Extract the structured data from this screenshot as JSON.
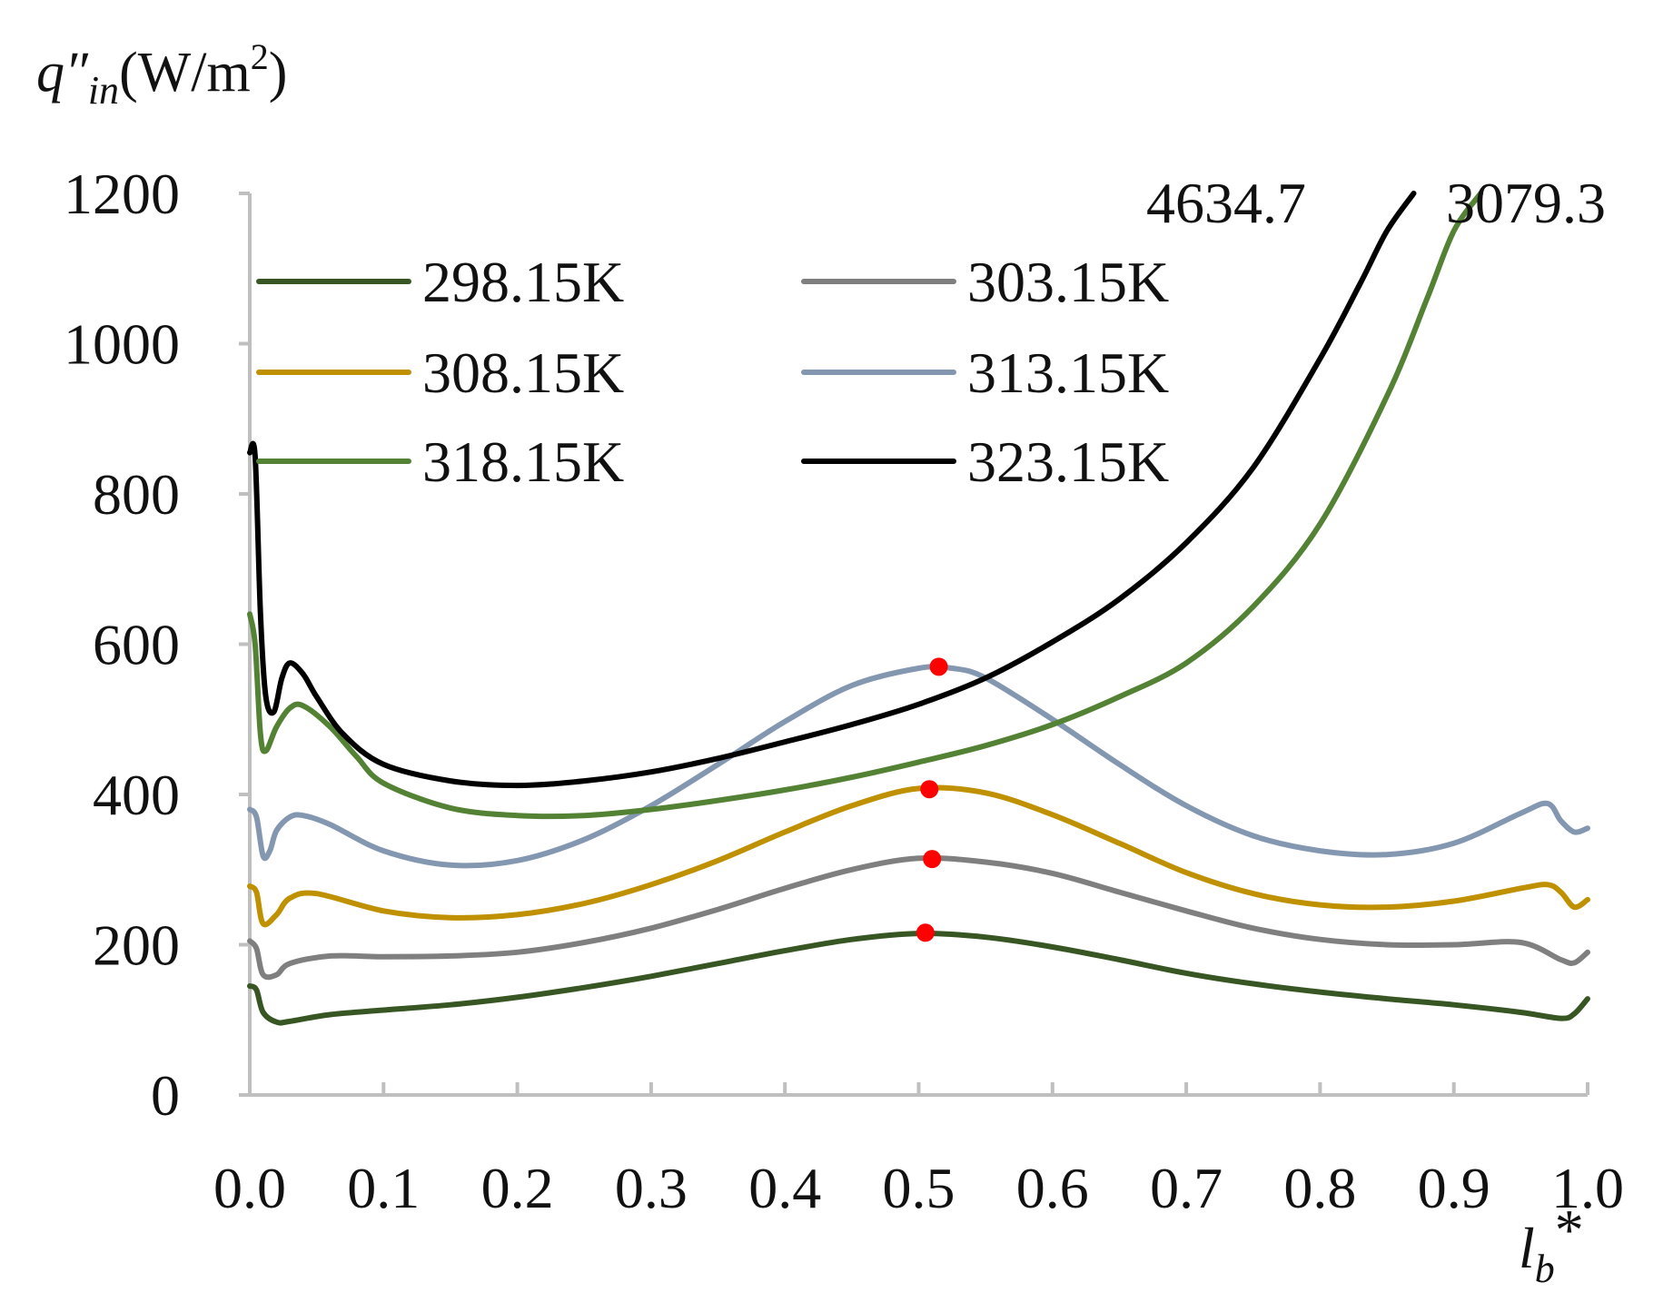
{
  "chart_data": {
    "type": "line",
    "ylabel": {
      "q": "q″",
      "sub": "in",
      "unit_pre": "(W/m",
      "unit_sup": "2",
      "unit_post": ")"
    },
    "xlabel": {
      "l": "l",
      "sub": "b",
      "star": "*"
    },
    "xlim": [
      0,
      1
    ],
    "ylim": [
      0,
      1200
    ],
    "xticks": [
      "0.0",
      "0.1",
      "0.2",
      "0.3",
      "0.4",
      "0.5",
      "0.6",
      "0.7",
      "0.8",
      "0.9",
      "1.0"
    ],
    "yticks": [
      "0",
      "200",
      "400",
      "600",
      "800",
      "1000",
      "1200"
    ],
    "annotations": [
      {
        "text": "4634.7",
        "series": "323.15K"
      },
      {
        "text": "3079.3",
        "series": "318.15K"
      }
    ],
    "legend_position": "top-left",
    "series": [
      {
        "name": "298.15K",
        "color": "#375623",
        "x": [
          0,
          0.005,
          0.01,
          0.02,
          0.03,
          0.06,
          0.1,
          0.15,
          0.2,
          0.25,
          0.3,
          0.35,
          0.4,
          0.45,
          0.5,
          0.55,
          0.6,
          0.65,
          0.7,
          0.75,
          0.8,
          0.85,
          0.9,
          0.95,
          0.98,
          0.99,
          1.0
        ],
        "values": [
          145,
          140,
          110,
          97,
          98,
          107,
          113,
          120,
          130,
          143,
          158,
          175,
          192,
          207,
          215,
          210,
          197,
          180,
          162,
          148,
          137,
          128,
          120,
          110,
          102,
          108,
          128
        ]
      },
      {
        "name": "303.15K",
        "color": "#7f7f7f",
        "x": [
          0,
          0.005,
          0.01,
          0.02,
          0.03,
          0.06,
          0.1,
          0.15,
          0.2,
          0.25,
          0.3,
          0.35,
          0.4,
          0.45,
          0.5,
          0.55,
          0.6,
          0.65,
          0.7,
          0.75,
          0.8,
          0.85,
          0.9,
          0.95,
          0.98,
          0.99,
          1.0
        ],
        "values": [
          205,
          195,
          160,
          160,
          175,
          185,
          184,
          185,
          190,
          203,
          222,
          247,
          275,
          300,
          315,
          310,
          295,
          270,
          245,
          222,
          207,
          200,
          200,
          203,
          180,
          176,
          190
        ]
      },
      {
        "name": "308.15K",
        "color": "#bf9000",
        "x": [
          0,
          0.005,
          0.01,
          0.02,
          0.03,
          0.05,
          0.1,
          0.15,
          0.2,
          0.25,
          0.3,
          0.35,
          0.4,
          0.45,
          0.5,
          0.55,
          0.6,
          0.65,
          0.7,
          0.75,
          0.8,
          0.85,
          0.9,
          0.95,
          0.97,
          0.98,
          0.99,
          1.0
        ],
        "values": [
          278,
          270,
          228,
          240,
          262,
          268,
          245,
          236,
          240,
          255,
          280,
          312,
          350,
          385,
          408,
          402,
          373,
          335,
          296,
          268,
          253,
          250,
          258,
          275,
          280,
          270,
          250,
          260
        ]
      },
      {
        "name": "313.15K",
        "color": "#8497b0",
        "x": [
          0,
          0.005,
          0.01,
          0.015,
          0.02,
          0.03,
          0.04,
          0.06,
          0.1,
          0.15,
          0.2,
          0.25,
          0.3,
          0.35,
          0.4,
          0.45,
          0.5,
          0.525,
          0.55,
          0.6,
          0.65,
          0.7,
          0.75,
          0.8,
          0.85,
          0.9,
          0.95,
          0.97,
          0.98,
          0.99,
          1.0
        ],
        "values": [
          380,
          370,
          318,
          325,
          352,
          370,
          372,
          360,
          325,
          306,
          312,
          340,
          385,
          440,
          497,
          545,
          568,
          568,
          555,
          500,
          440,
          385,
          345,
          325,
          320,
          335,
          375,
          388,
          365,
          350,
          355
        ]
      },
      {
        "name": "318.15K",
        "color": "#548235",
        "x": [
          0,
          0.004,
          0.008,
          0.012,
          0.02,
          0.03,
          0.04,
          0.06,
          0.08,
          0.1,
          0.15,
          0.2,
          0.25,
          0.3,
          0.35,
          0.4,
          0.45,
          0.5,
          0.55,
          0.6,
          0.65,
          0.7,
          0.75,
          0.8,
          0.85,
          0.88,
          0.9,
          0.92
        ],
        "values": [
          640,
          600,
          480,
          458,
          490,
          515,
          518,
          490,
          450,
          415,
          382,
          372,
          372,
          380,
          392,
          406,
          423,
          443,
          465,
          493,
          530,
          575,
          650,
          760,
          930,
          1060,
          1150,
          1200
        ]
      },
      {
        "name": "323.15K",
        "color": "#000000",
        "x": [
          0,
          0.004,
          0.008,
          0.012,
          0.018,
          0.024,
          0.03,
          0.04,
          0.05,
          0.07,
          0.1,
          0.15,
          0.2,
          0.25,
          0.3,
          0.35,
          0.4,
          0.45,
          0.5,
          0.55,
          0.6,
          0.65,
          0.7,
          0.75,
          0.8,
          0.83,
          0.85,
          0.87
        ],
        "values": [
          855,
          850,
          640,
          530,
          510,
          555,
          575,
          560,
          530,
          480,
          440,
          418,
          412,
          418,
          430,
          448,
          470,
          493,
          520,
          555,
          603,
          660,
          735,
          835,
          980,
          1080,
          1150,
          1200
        ]
      }
    ],
    "markers": [
      {
        "series": "313.15K",
        "x": 0.515,
        "y": 570
      },
      {
        "series": "308.15K",
        "x": 0.508,
        "y": 407
      },
      {
        "series": "303.15K",
        "x": 0.51,
        "y": 314
      },
      {
        "series": "298.15K",
        "x": 0.505,
        "y": 216
      }
    ],
    "marker_color": "#ff0000"
  }
}
